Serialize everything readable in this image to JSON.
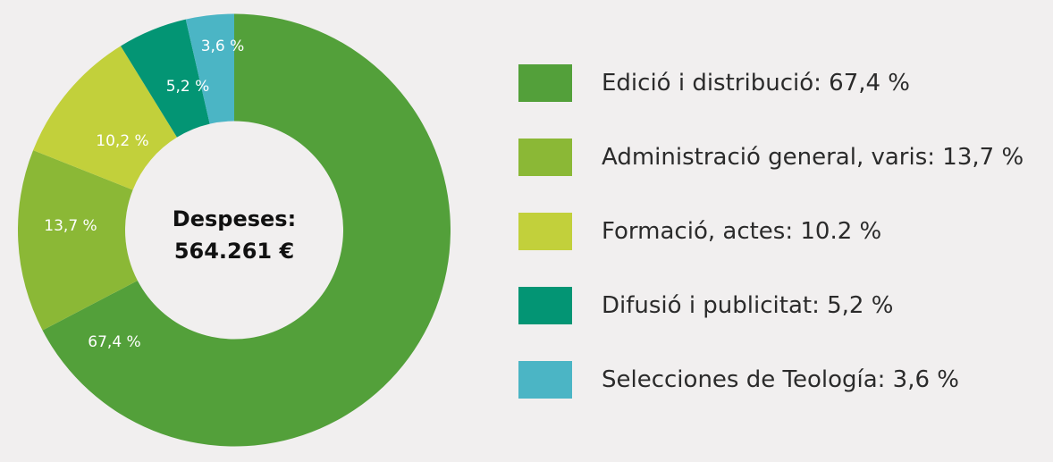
{
  "chart_data": {
    "type": "pie",
    "donut": true,
    "center_label": {
      "line1": "Despeses:",
      "line2": "564.261 €"
    },
    "slices": [
      {
        "name": "Edició i distribució",
        "value": 67.4,
        "label": "67,4 %",
        "legend": "Edició i distribució: 67,4 %",
        "color": "#53a03a"
      },
      {
        "name": "Administració general, varis",
        "value": 13.7,
        "label": "13,7 %",
        "legend": "Administració general, varis: 13,7 %",
        "color": "#8bb836"
      },
      {
        "name": "Formació, actes",
        "value": 10.2,
        "label": "10,2 %",
        "legend": "Formació, actes: 10.2 %",
        "color": "#c2d03b"
      },
      {
        "name": "Difusió i publicitat",
        "value": 5.2,
        "label": "5,2 %",
        "legend": "Difusió i publicitat: 5,2 %",
        "color": "#039574"
      },
      {
        "name": "Selecciones de Teología",
        "value": 3.6,
        "label": "3,6 %",
        "legend": "Selecciones de Teología: 3,6 %",
        "color": "#4bb5c5"
      }
    ],
    "legend_position": "right"
  }
}
